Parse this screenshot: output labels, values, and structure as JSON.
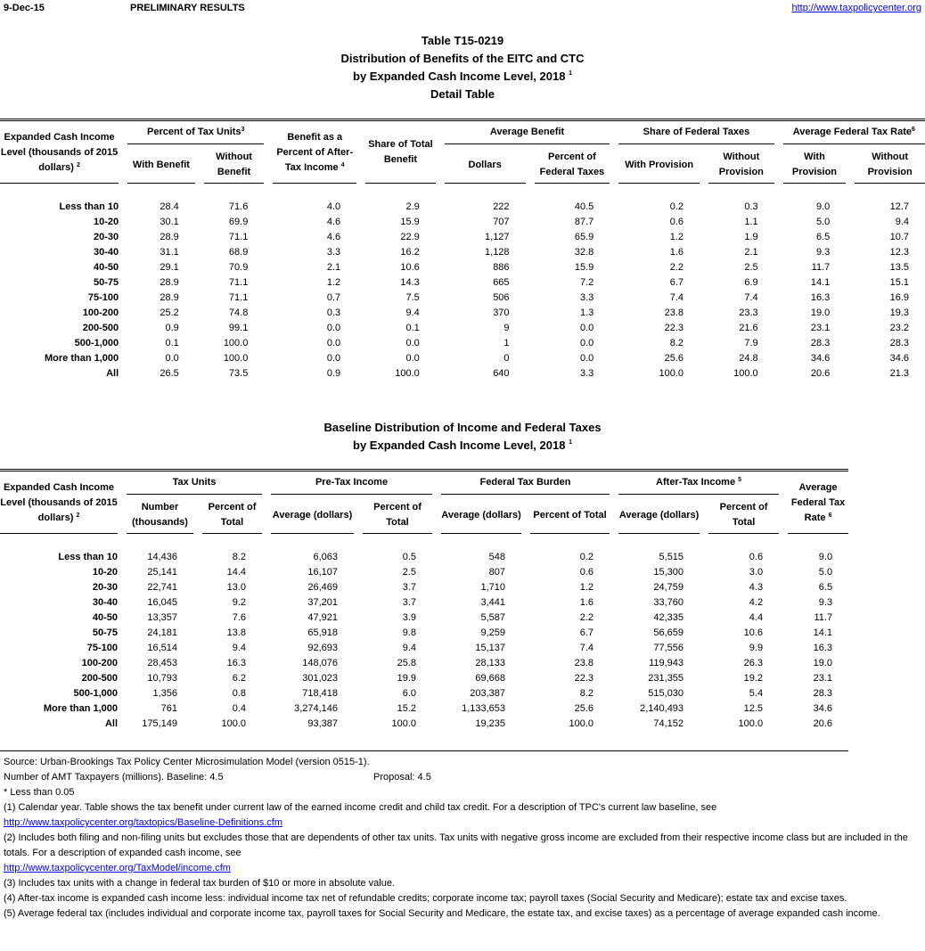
{
  "header": {
    "date": "9-Dec-15",
    "status": "PRELIMINARY RESULTS",
    "link": "http://www.taxpolicycenter.org"
  },
  "table1": {
    "title_lines": [
      "Table T15-0219",
      "Distribution of Benefits of the EITC and CTC",
      "by Expanded Cash Income Level, 2018",
      "Detail Table"
    ],
    "title_sup": "1",
    "label_header": "Expanded Cash Income Level (thousands of 2015 dollars)",
    "label_sup": "2",
    "groups": {
      "pct_units": "Percent of Tax Units",
      "pct_units_sup": "3",
      "benefit_pct": "Benefit as a Percent of After-Tax Income",
      "benefit_pct_sup": "4",
      "share_total": "Share of Total Benefit",
      "avg_benefit": "Average Benefit",
      "share_fed": "Share of Federal Taxes",
      "avg_rate": "Average Federal Tax Rate",
      "avg_rate_sup": "6"
    },
    "subs": {
      "with_benefit": "With Benefit",
      "without_benefit": "Without Benefit",
      "dollars": "Dollars",
      "pct_fed": "Percent of Federal Taxes",
      "with_prov": "With Provision",
      "without_prov": "Without Provision",
      "with_prov2": "With Provision",
      "without_prov2": "Without Provision"
    },
    "rows": [
      [
        "Less than 10",
        "28.4",
        "71.6",
        "4.0",
        "2.9",
        "222",
        "40.5",
        "0.2",
        "0.3",
        "9.0",
        "12.7"
      ],
      [
        "10-20",
        "30.1",
        "69.9",
        "4.6",
        "15.9",
        "707",
        "87.7",
        "0.6",
        "1.1",
        "5.0",
        "9.4"
      ],
      [
        "20-30",
        "28.9",
        "71.1",
        "4.6",
        "22.9",
        "1,127",
        "65.9",
        "1.2",
        "1.9",
        "6.5",
        "10.7"
      ],
      [
        "30-40",
        "31.1",
        "68.9",
        "3.3",
        "16.2",
        "1,128",
        "32.8",
        "1.6",
        "2.1",
        "9.3",
        "12.3"
      ],
      [
        "40-50",
        "29.1",
        "70.9",
        "2.1",
        "10.6",
        "886",
        "15.9",
        "2.2",
        "2.5",
        "11.7",
        "13.5"
      ],
      [
        "50-75",
        "28.9",
        "71.1",
        "1.2",
        "14.3",
        "665",
        "7.2",
        "6.7",
        "6.9",
        "14.1",
        "15.1"
      ],
      [
        "75-100",
        "28.9",
        "71.1",
        "0.7",
        "7.5",
        "506",
        "3.3",
        "7.4",
        "7.4",
        "16.3",
        "16.9"
      ],
      [
        "100-200",
        "25.2",
        "74.8",
        "0.3",
        "9.4",
        "370",
        "1.3",
        "23.8",
        "23.3",
        "19.0",
        "19.3"
      ],
      [
        "200-500",
        "0.9",
        "99.1",
        "0.0",
        "0.1",
        "9",
        "0.0",
        "22.3",
        "21.6",
        "23.1",
        "23.2"
      ],
      [
        "500-1,000",
        "0.1",
        "100.0",
        "0.0",
        "0.0",
        "1",
        "0.0",
        "8.2",
        "7.9",
        "28.3",
        "28.3"
      ],
      [
        "More than 1,000",
        "0.0",
        "100.0",
        "0.0",
        "0.0",
        "0",
        "0.0",
        "25.6",
        "24.8",
        "34.6",
        "34.6"
      ],
      [
        "All",
        "26.5",
        "73.5",
        "0.9",
        "100.0",
        "640",
        "3.3",
        "100.0",
        "100.0",
        "20.6",
        "21.3"
      ]
    ]
  },
  "table2": {
    "title_lines": [
      "Baseline Distribution of Income and Federal Taxes",
      "by Expanded Cash Income Level, 2018"
    ],
    "title_sup": "1",
    "label_header": "Expanded Cash Income Level (thousands of 2015 dollars)",
    "label_sup": "2",
    "groups": {
      "tax_units": "Tax Units",
      "pretax": "Pre-Tax Income",
      "fed_burden": "Federal Tax Burden",
      "aftertax": "After-Tax Income",
      "aftertax_sup": "5",
      "avg_rate": "Average Federal Tax Rate",
      "avg_rate_sup": "6"
    },
    "subs": {
      "number": "Number (thousands)",
      "pct1": "Percent of Total",
      "avg1": "Average (dollars)",
      "pct2": "Percent of Total",
      "avg2": "Average (dollars)",
      "pct3": "Percent of Total",
      "avg3": "Average (dollars)",
      "pct4": "Percent of Total"
    },
    "rows": [
      [
        "Less than 10",
        "14,436",
        "8.2",
        "6,063",
        "0.5",
        "548",
        "0.2",
        "5,515",
        "0.6",
        "9.0"
      ],
      [
        "10-20",
        "25,141",
        "14.4",
        "16,107",
        "2.5",
        "807",
        "0.6",
        "15,300",
        "3.0",
        "5.0"
      ],
      [
        "20-30",
        "22,741",
        "13.0",
        "26,469",
        "3.7",
        "1,710",
        "1.2",
        "24,759",
        "4.3",
        "6.5"
      ],
      [
        "30-40",
        "16,045",
        "9.2",
        "37,201",
        "3.7",
        "3,441",
        "1.6",
        "33,760",
        "4.2",
        "9.3"
      ],
      [
        "40-50",
        "13,357",
        "7.6",
        "47,921",
        "3.9",
        "5,587",
        "2.2",
        "42,335",
        "4.4",
        "11.7"
      ],
      [
        "50-75",
        "24,181",
        "13.8",
        "65,918",
        "9.8",
        "9,259",
        "6.7",
        "56,659",
        "10.6",
        "14.1"
      ],
      [
        "75-100",
        "16,514",
        "9.4",
        "92,693",
        "9.4",
        "15,137",
        "7.4",
        "77,556",
        "9.9",
        "16.3"
      ],
      [
        "100-200",
        "28,453",
        "16.3",
        "148,076",
        "25.8",
        "28,133",
        "23.8",
        "119,943",
        "26.3",
        "19.0"
      ],
      [
        "200-500",
        "10,793",
        "6.2",
        "301,023",
        "19.9",
        "69,668",
        "22.3",
        "231,355",
        "19.2",
        "23.1"
      ],
      [
        "500-1,000",
        "1,356",
        "0.8",
        "718,418",
        "6.0",
        "203,387",
        "8.2",
        "515,030",
        "5.4",
        "28.3"
      ],
      [
        "More than 1,000",
        "761",
        "0.4",
        "3,274,146",
        "15.2",
        "1,133,653",
        "25.6",
        "2,140,493",
        "12.5",
        "34.6"
      ],
      [
        "All",
        "175,149",
        "100.0",
        "93,387",
        "100.0",
        "19,235",
        "100.0",
        "74,152",
        "100.0",
        "20.6"
      ]
    ]
  },
  "footnotes": {
    "source": "Source: Urban-Brookings Tax Policy Center Microsimulation Model (version 0515-1).",
    "amt_label": "Number of AMT Taxpayers (millions).  Baseline: 4.5",
    "amt_proposal": "Proposal: 4.5",
    "less_than": "* Less than 0.05",
    "n1": "(1) Calendar year. Table shows the tax benefit under current law of the earned income credit and child tax credit.  For a description of TPC's current law baseline, see",
    "n1_link": "http://www.taxpolicycenter.org/taxtopics/Baseline-Definitions.cfm",
    "n2": "(2) Includes both filing and non-filing units but excludes those that are dependents of other tax units. Tax units with negative gross income are excluded from their respective income class but are included in the totals. For a description of expanded cash income, see",
    "n2_link": "http://www.taxpolicycenter.org/TaxModel/income.cfm",
    "n3": "(3) Includes tax units with a change in federal tax burden of $10 or more in absolute value.",
    "n4": "(4) After-tax income is expanded cash income less: individual income tax net of refundable credits; corporate income tax; payroll taxes (Social Security and Medicare); estate tax and excise taxes.",
    "n5": "(5) Average federal tax (includes individual and corporate income tax, payroll taxes for Social Security and Medicare, the estate tax, and excise taxes) as a percentage of average expanded cash income."
  }
}
